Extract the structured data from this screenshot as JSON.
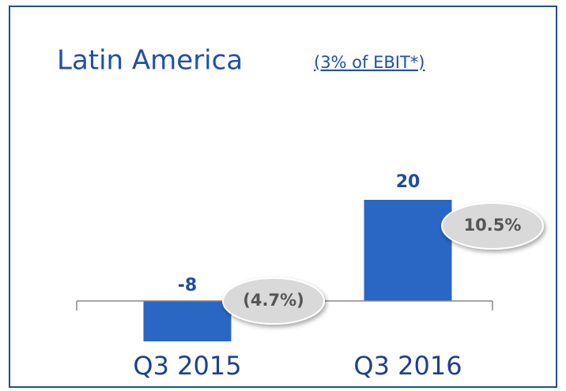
{
  "chart_data": {
    "type": "bar",
    "title": "Latin America",
    "subtitle": "(3% of EBIT*)",
    "categories": [
      "Q3 2015",
      "Q3 2016"
    ],
    "values": [
      -8,
      20
    ],
    "color": "#2a66c4",
    "annotations": [
      "(4.7%)",
      "10.5%"
    ]
  }
}
